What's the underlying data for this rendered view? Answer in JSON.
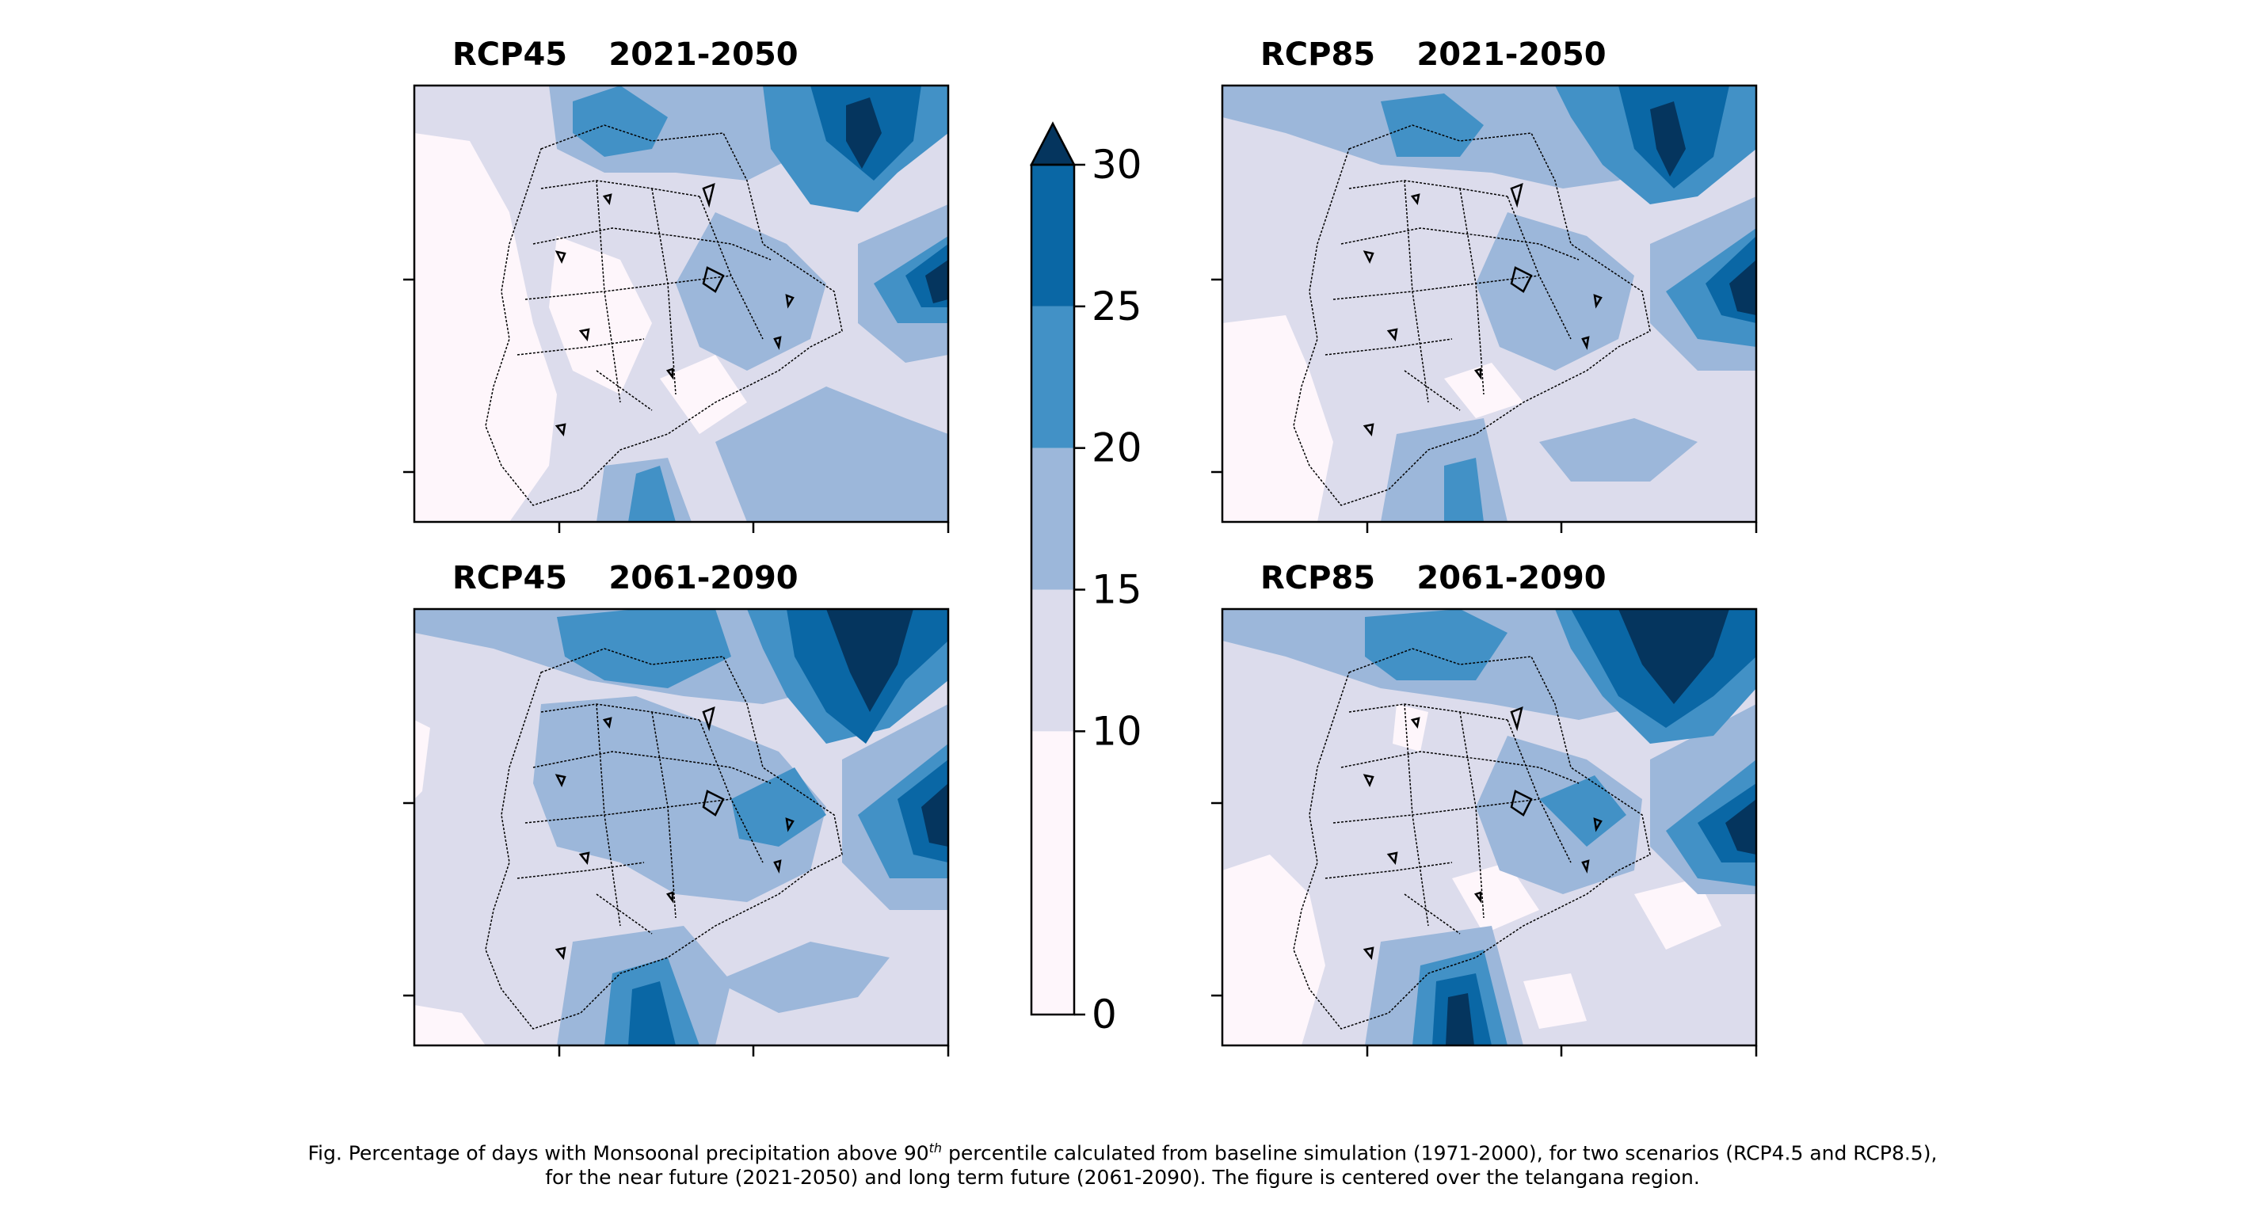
{
  "chart_data": {
    "type": "contour_map",
    "panels": [
      {
        "scenario": "RCP45",
        "period": "2021-2050",
        "layout_row": 1,
        "layout_col": 1
      },
      {
        "scenario": "RCP85",
        "period": "2021-2050",
        "layout_row": 1,
        "layout_col": 2
      },
      {
        "scenario": "RCP45",
        "period": "2061-2090",
        "layout_row": 2,
        "layout_col": 1
      },
      {
        "scenario": "RCP85",
        "period": "2061-2090",
        "layout_row": 2,
        "layout_col": 2
      }
    ],
    "colorbar": {
      "levels": [
        0,
        5,
        10,
        15,
        20,
        25,
        30
      ],
      "tick_labels": [
        "0",
        "10",
        "15",
        "20",
        "25",
        "30"
      ],
      "extend": "max",
      "colors": [
        "#fef6fb",
        "#dcdcec",
        "#9cb7da",
        "#4291c6",
        "#0a67a5",
        "#05355e"
      ]
    },
    "axes": {
      "x_tick_labels": "none",
      "y_tick_labels": "none"
    }
  },
  "caption": {
    "line1_before_sup": "Fig. Percentage of days with Monsoonal precipitation above 90",
    "line1_sup": "th",
    "line1_after_sup": " percentile calculated from baseline simulation (1971-2000), for two scenarios (RCP4.5 and RCP8.5),",
    "line2": "for the near future (2021-2050) and long term future (2061-2090). The figure is centered over the telangana region."
  }
}
